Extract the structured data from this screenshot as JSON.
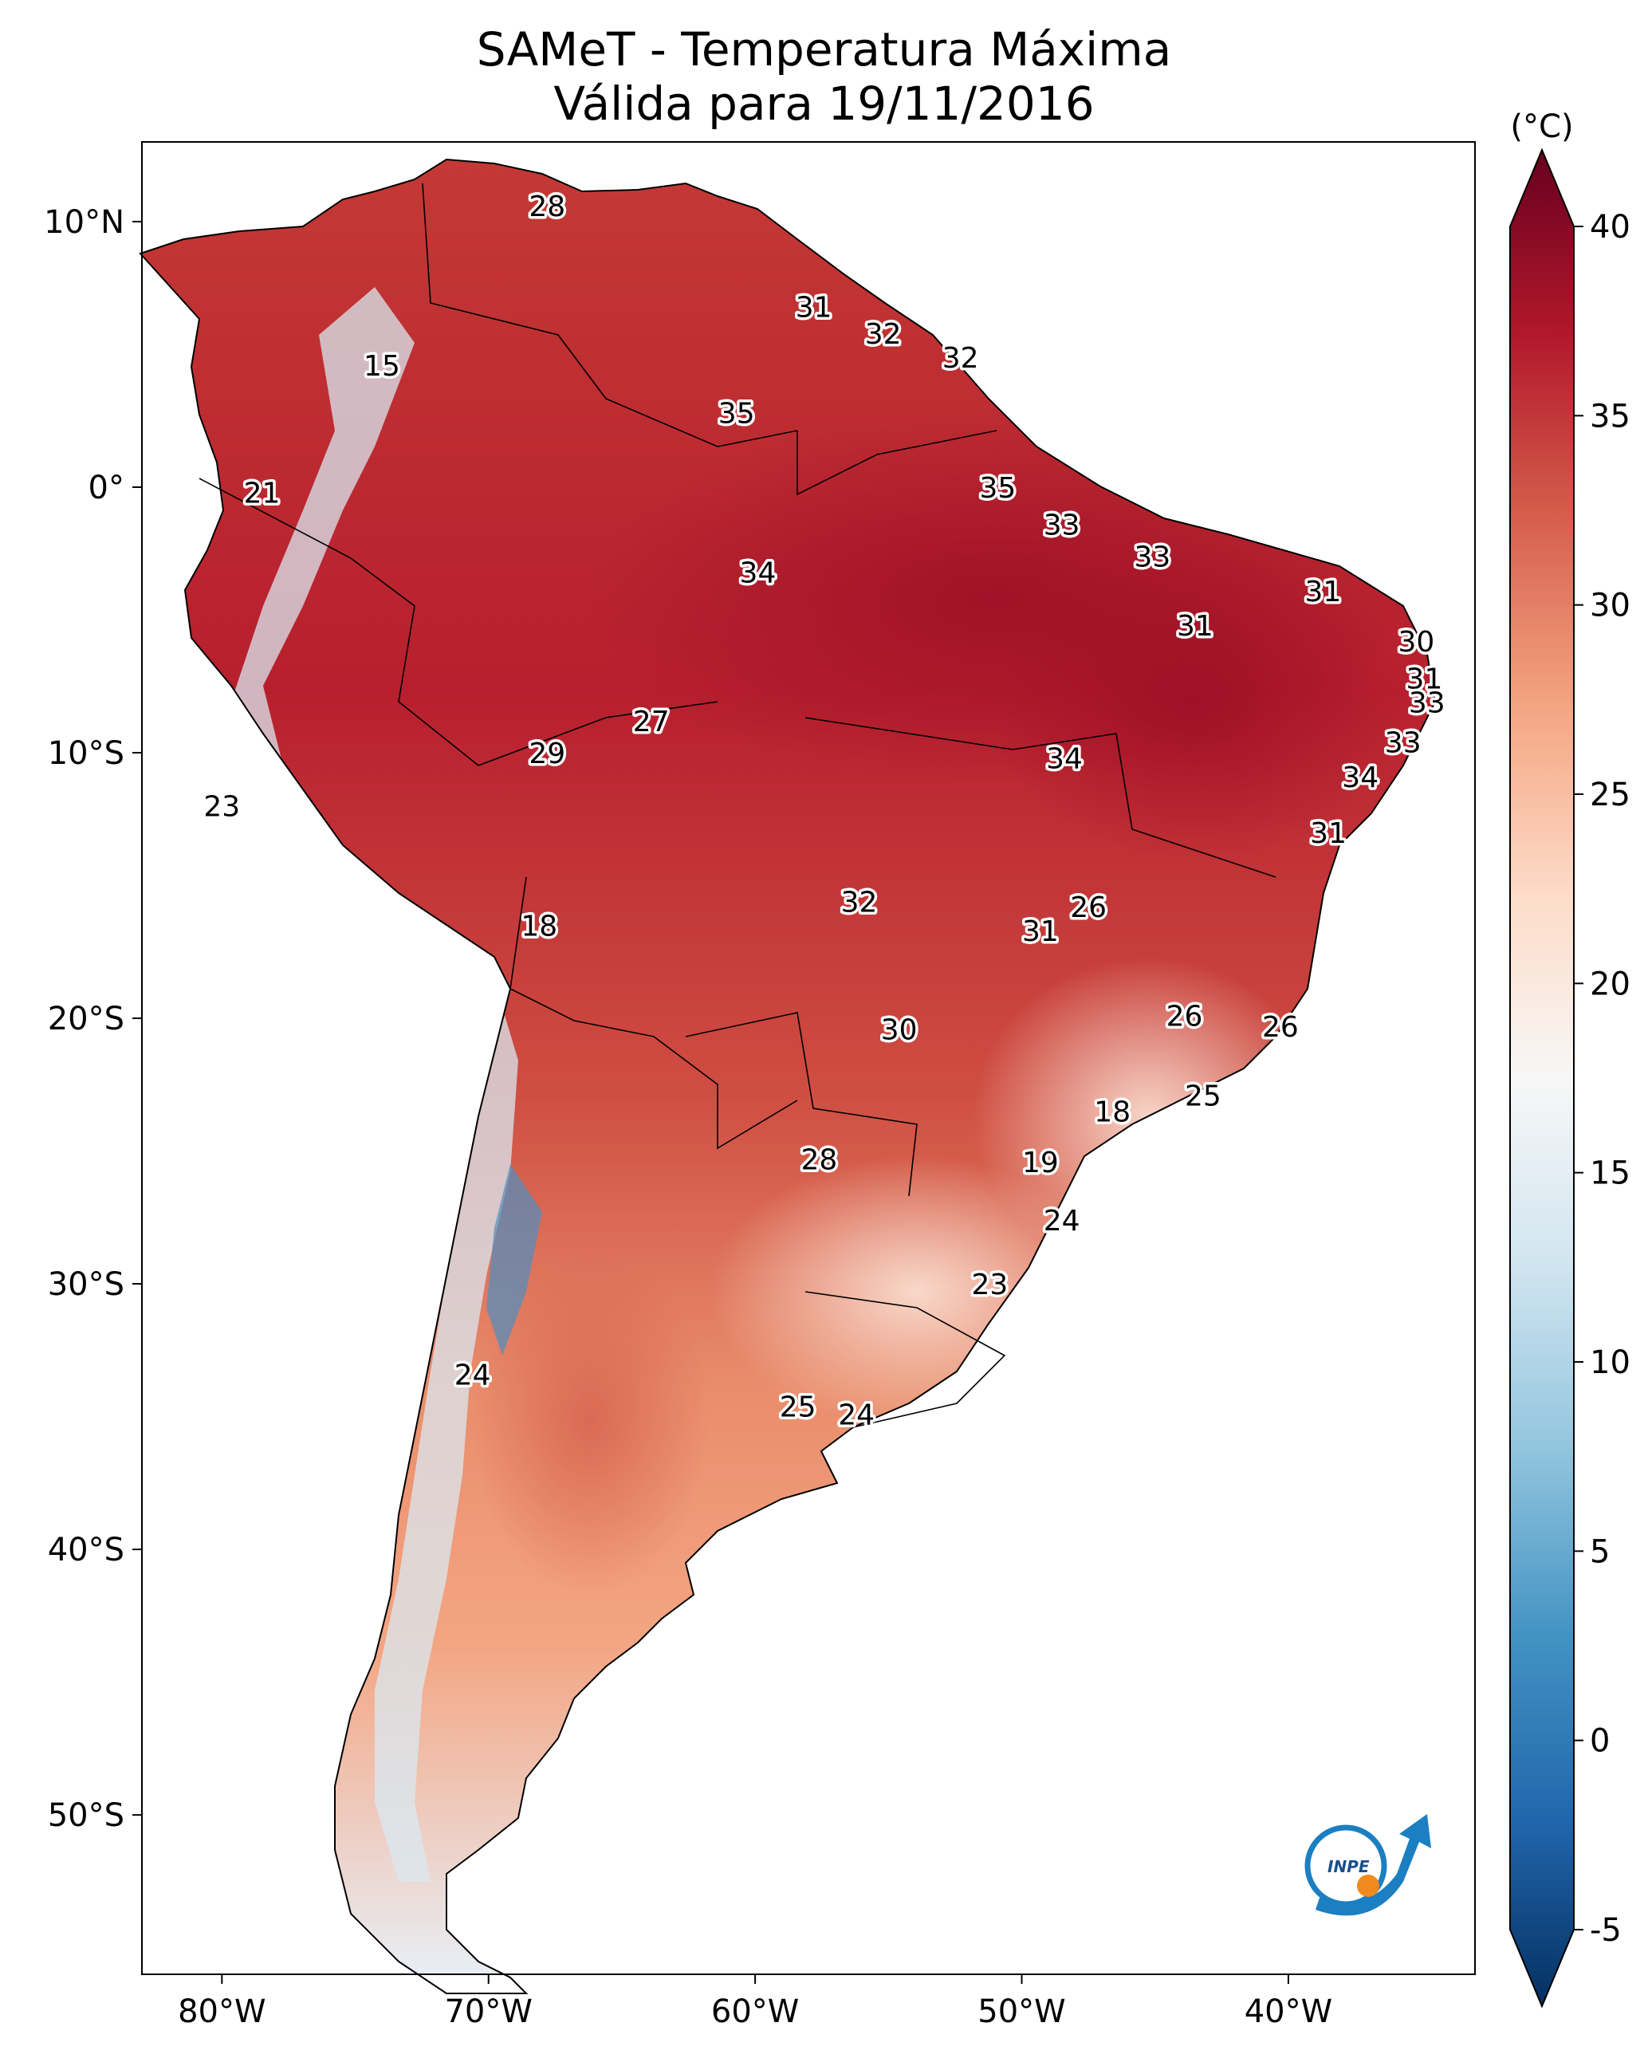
{
  "title": {
    "line1": "SAMeT - Temperatura Máxima",
    "line2": "Válida para 19/11/2016"
  },
  "map": {
    "lon_range": [
      -83,
      -33
    ],
    "lat_range": [
      -56,
      13
    ],
    "lon_ticks": [
      {
        "value": -80,
        "label": "80°W"
      },
      {
        "value": -70,
        "label": "70°W"
      },
      {
        "value": -60,
        "label": "60°W"
      },
      {
        "value": -50,
        "label": "50°W"
      },
      {
        "value": -40,
        "label": "40°W"
      }
    ],
    "lat_ticks": [
      {
        "value": 10,
        "label": "10°N"
      },
      {
        "value": 0,
        "label": "0°"
      },
      {
        "value": -10,
        "label": "10°S"
      },
      {
        "value": -20,
        "label": "20°S"
      },
      {
        "value": -30,
        "label": "30°S"
      },
      {
        "value": -40,
        "label": "40°S"
      },
      {
        "value": -50,
        "label": "50°S"
      }
    ],
    "city_labels": [
      {
        "lon": -67.8,
        "lat": 10.6,
        "value": "28"
      },
      {
        "lon": -74.0,
        "lat": 4.6,
        "value": "15"
      },
      {
        "lon": -78.5,
        "lat": -0.2,
        "value": "21"
      },
      {
        "lon": -80.0,
        "lat": -12.0,
        "value": "23"
      },
      {
        "lon": -57.8,
        "lat": 6.8,
        "value": "31"
      },
      {
        "lon": -55.2,
        "lat": 5.8,
        "value": "32"
      },
      {
        "lon": -52.3,
        "lat": 4.9,
        "value": "32"
      },
      {
        "lon": -60.7,
        "lat": 2.8,
        "value": "35"
      },
      {
        "lon": -50.9,
        "lat": 0.0,
        "value": "35"
      },
      {
        "lon": -59.9,
        "lat": -3.2,
        "value": "34"
      },
      {
        "lon": -48.5,
        "lat": -1.4,
        "value": "33"
      },
      {
        "lon": -45.1,
        "lat": -2.6,
        "value": "33"
      },
      {
        "lon": -43.5,
        "lat": -5.2,
        "value": "31"
      },
      {
        "lon": -38.7,
        "lat": -3.9,
        "value": "31"
      },
      {
        "lon": -35.2,
        "lat": -5.8,
        "value": "30"
      },
      {
        "lon": -34.9,
        "lat": -7.2,
        "value": "31"
      },
      {
        "lon": -34.8,
        "lat": -8.1,
        "value": "33"
      },
      {
        "lon": -35.7,
        "lat": -9.6,
        "value": "33"
      },
      {
        "lon": -37.3,
        "lat": -10.9,
        "value": "34"
      },
      {
        "lon": -38.5,
        "lat": -13.0,
        "value": "31"
      },
      {
        "lon": -48.4,
        "lat": -10.2,
        "value": "34"
      },
      {
        "lon": -63.9,
        "lat": -8.8,
        "value": "27"
      },
      {
        "lon": -67.8,
        "lat": -10.0,
        "value": "29"
      },
      {
        "lon": -68.1,
        "lat": -16.5,
        "value": "18"
      },
      {
        "lon": -56.1,
        "lat": -15.6,
        "value": "32"
      },
      {
        "lon": -47.5,
        "lat": -15.8,
        "value": "26"
      },
      {
        "lon": -49.3,
        "lat": -16.7,
        "value": "31"
      },
      {
        "lon": -54.6,
        "lat": -20.4,
        "value": "30"
      },
      {
        "lon": -43.9,
        "lat": -19.9,
        "value": "26"
      },
      {
        "lon": -40.3,
        "lat": -20.3,
        "value": "26"
      },
      {
        "lon": -43.2,
        "lat": -22.9,
        "value": "25"
      },
      {
        "lon": -46.6,
        "lat": -23.5,
        "value": "18"
      },
      {
        "lon": -49.3,
        "lat": -25.4,
        "value": "19"
      },
      {
        "lon": -57.6,
        "lat": -25.3,
        "value": "28"
      },
      {
        "lon": -48.5,
        "lat": -27.6,
        "value": "24"
      },
      {
        "lon": -51.2,
        "lat": -30.0,
        "value": "23"
      },
      {
        "lon": -70.6,
        "lat": -33.4,
        "value": "24"
      },
      {
        "lon": -58.4,
        "lat": -34.6,
        "value": "25"
      },
      {
        "lon": -56.2,
        "lat": -34.9,
        "value": "24"
      }
    ],
    "logo_text": "INPE"
  },
  "colorbar": {
    "unit": "(°C)",
    "vmin": -5,
    "vmax": 40,
    "ticks": [
      {
        "value": 40,
        "label": "40"
      },
      {
        "value": 35,
        "label": "35"
      },
      {
        "value": 30,
        "label": "30"
      },
      {
        "value": 25,
        "label": "25"
      },
      {
        "value": 20,
        "label": "20"
      },
      {
        "value": 15,
        "label": "15"
      },
      {
        "value": 10,
        "label": "10"
      },
      {
        "value": 5,
        "label": "5"
      },
      {
        "value": 0,
        "label": "0"
      },
      {
        "value": -5,
        "label": "-5"
      }
    ],
    "colors": [
      "#053061",
      "#2166ac",
      "#4393c3",
      "#92c5de",
      "#d1e5f0",
      "#f7f7f7",
      "#fddbc7",
      "#f4a582",
      "#d6604d",
      "#b2182b",
      "#67001f"
    ]
  }
}
